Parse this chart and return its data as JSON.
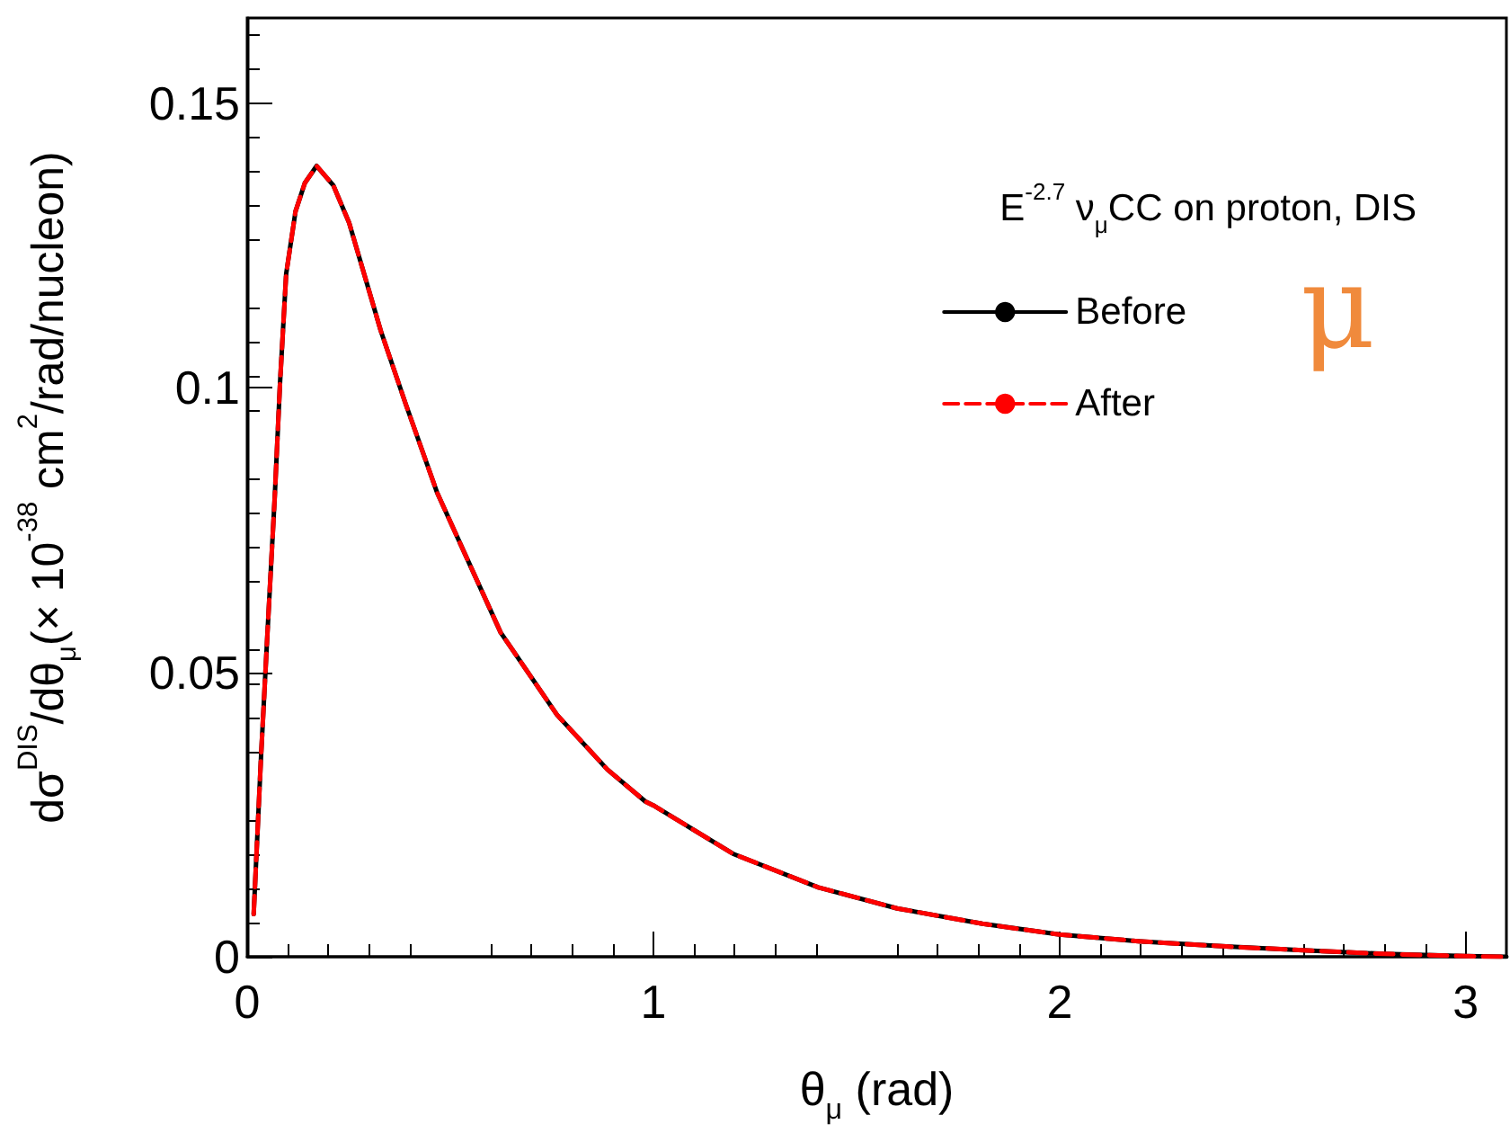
{
  "chart_data": {
    "type": "line",
    "xlabel": "θ$_{μ}$ (rad)",
    "ylabel": "dσ$^{DIS}$/dθ$_{μ}$(× 10$^{-38}$ cm$^{2}$/rad/nucleon)",
    "legend_title": "E$^{-2.7}$ ν$_{μ}$CC on proton, DIS",
    "annotations": [
      "μ"
    ],
    "x": [
      0.016,
      0.034,
      0.05,
      0.068,
      0.081,
      0.096,
      0.119,
      0.142,
      0.171,
      0.212,
      0.251,
      0.329,
      0.391,
      0.468,
      0.624,
      0.763,
      0.887,
      0.98,
      1.0,
      1.196,
      1.406,
      1.6,
      1.81,
      2.0,
      2.2,
      2.41,
      2.61,
      2.8,
      3.0,
      3.1
    ],
    "series": [
      {
        "name": "Before",
        "color": "#000000",
        "line_style": "solid",
        "values": [
          0.0075,
          0.035,
          0.057,
          0.081,
          0.101,
          0.12,
          0.131,
          0.136,
          0.139,
          0.1356,
          0.129,
          0.11,
          0.097,
          0.0815,
          0.057,
          0.0425,
          0.0329,
          0.0273,
          0.0266,
          0.0181,
          0.0122,
          0.0085,
          0.0058,
          0.0039,
          0.0027,
          0.0018,
          0.0011,
          0.0005,
          0.0001,
          0.0
        ]
      },
      {
        "name": "After",
        "color": "#ff0000",
        "line_style": "dashed",
        "values": [
          0.0075,
          0.035,
          0.057,
          0.081,
          0.101,
          0.12,
          0.131,
          0.136,
          0.139,
          0.1356,
          0.129,
          0.11,
          0.097,
          0.0815,
          0.057,
          0.0425,
          0.0329,
          0.0273,
          0.0266,
          0.0181,
          0.0122,
          0.0085,
          0.0058,
          0.0039,
          0.0027,
          0.0018,
          0.0011,
          0.0005,
          0.0001,
          0.0
        ]
      }
    ],
    "xlim": [
      0,
      3.1
    ],
    "xticks": [
      0,
      1,
      2,
      3
    ],
    "ylim": [
      0,
      0.165
    ],
    "yticks": [
      0,
      0.05,
      0.1,
      0.15
    ],
    "grid": false,
    "legend": "top right",
    "marker": "none"
  }
}
